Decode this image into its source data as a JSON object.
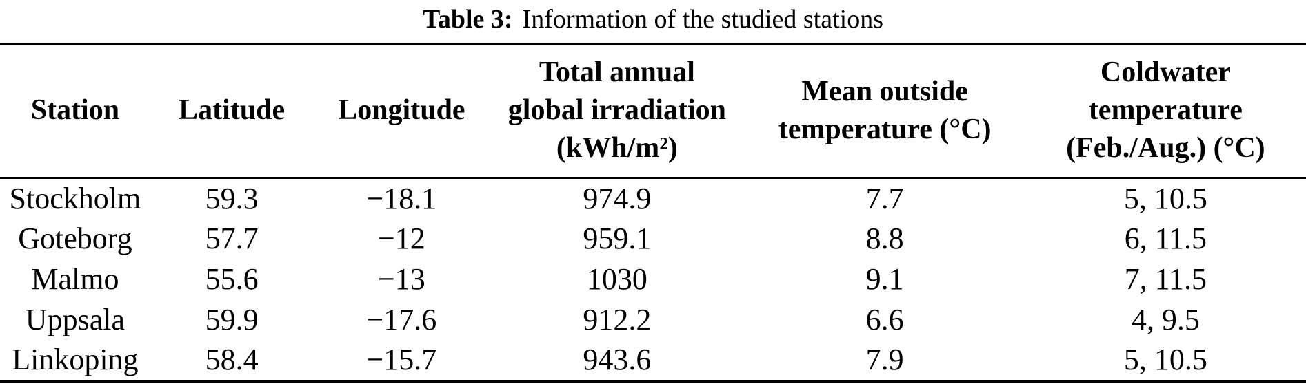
{
  "title": {
    "label": "Table 3:",
    "text": "Information of the studied stations"
  },
  "table": {
    "columns": [
      {
        "key": "station",
        "label": "Station"
      },
      {
        "key": "latitude",
        "label": "Latitude"
      },
      {
        "key": "longitude",
        "label": "Longitude"
      },
      {
        "key": "irradiation",
        "label": "Total annual\nglobal irradiation\n(kWh/m²)"
      },
      {
        "key": "mean-outside-temp",
        "label": "Mean outside\ntemperature (°C)"
      },
      {
        "key": "coldwater-temp",
        "label": "Coldwater\ntemperature\n(Feb./Aug.) (°C)"
      }
    ],
    "rows": [
      [
        "Stockholm",
        "59.3",
        "−18.1",
        "974.9",
        "7.7",
        "5, 10.5"
      ],
      [
        "Goteborg",
        "57.7",
        "−12",
        "959.1",
        "8.8",
        "6, 11.5"
      ],
      [
        "Malmo",
        "55.6",
        "−13",
        "1030",
        "9.1",
        "7, 11.5"
      ],
      [
        "Uppsala",
        "59.9",
        "−17.6",
        "912.2",
        "6.6",
        "4, 9.5"
      ],
      [
        "Linkoping",
        "58.4",
        "−15.7",
        "943.6",
        "7.9",
        "5, 10.5"
      ]
    ]
  },
  "colors": {
    "background": "#ffffff",
    "text": "#000000",
    "rule": "#000000"
  }
}
